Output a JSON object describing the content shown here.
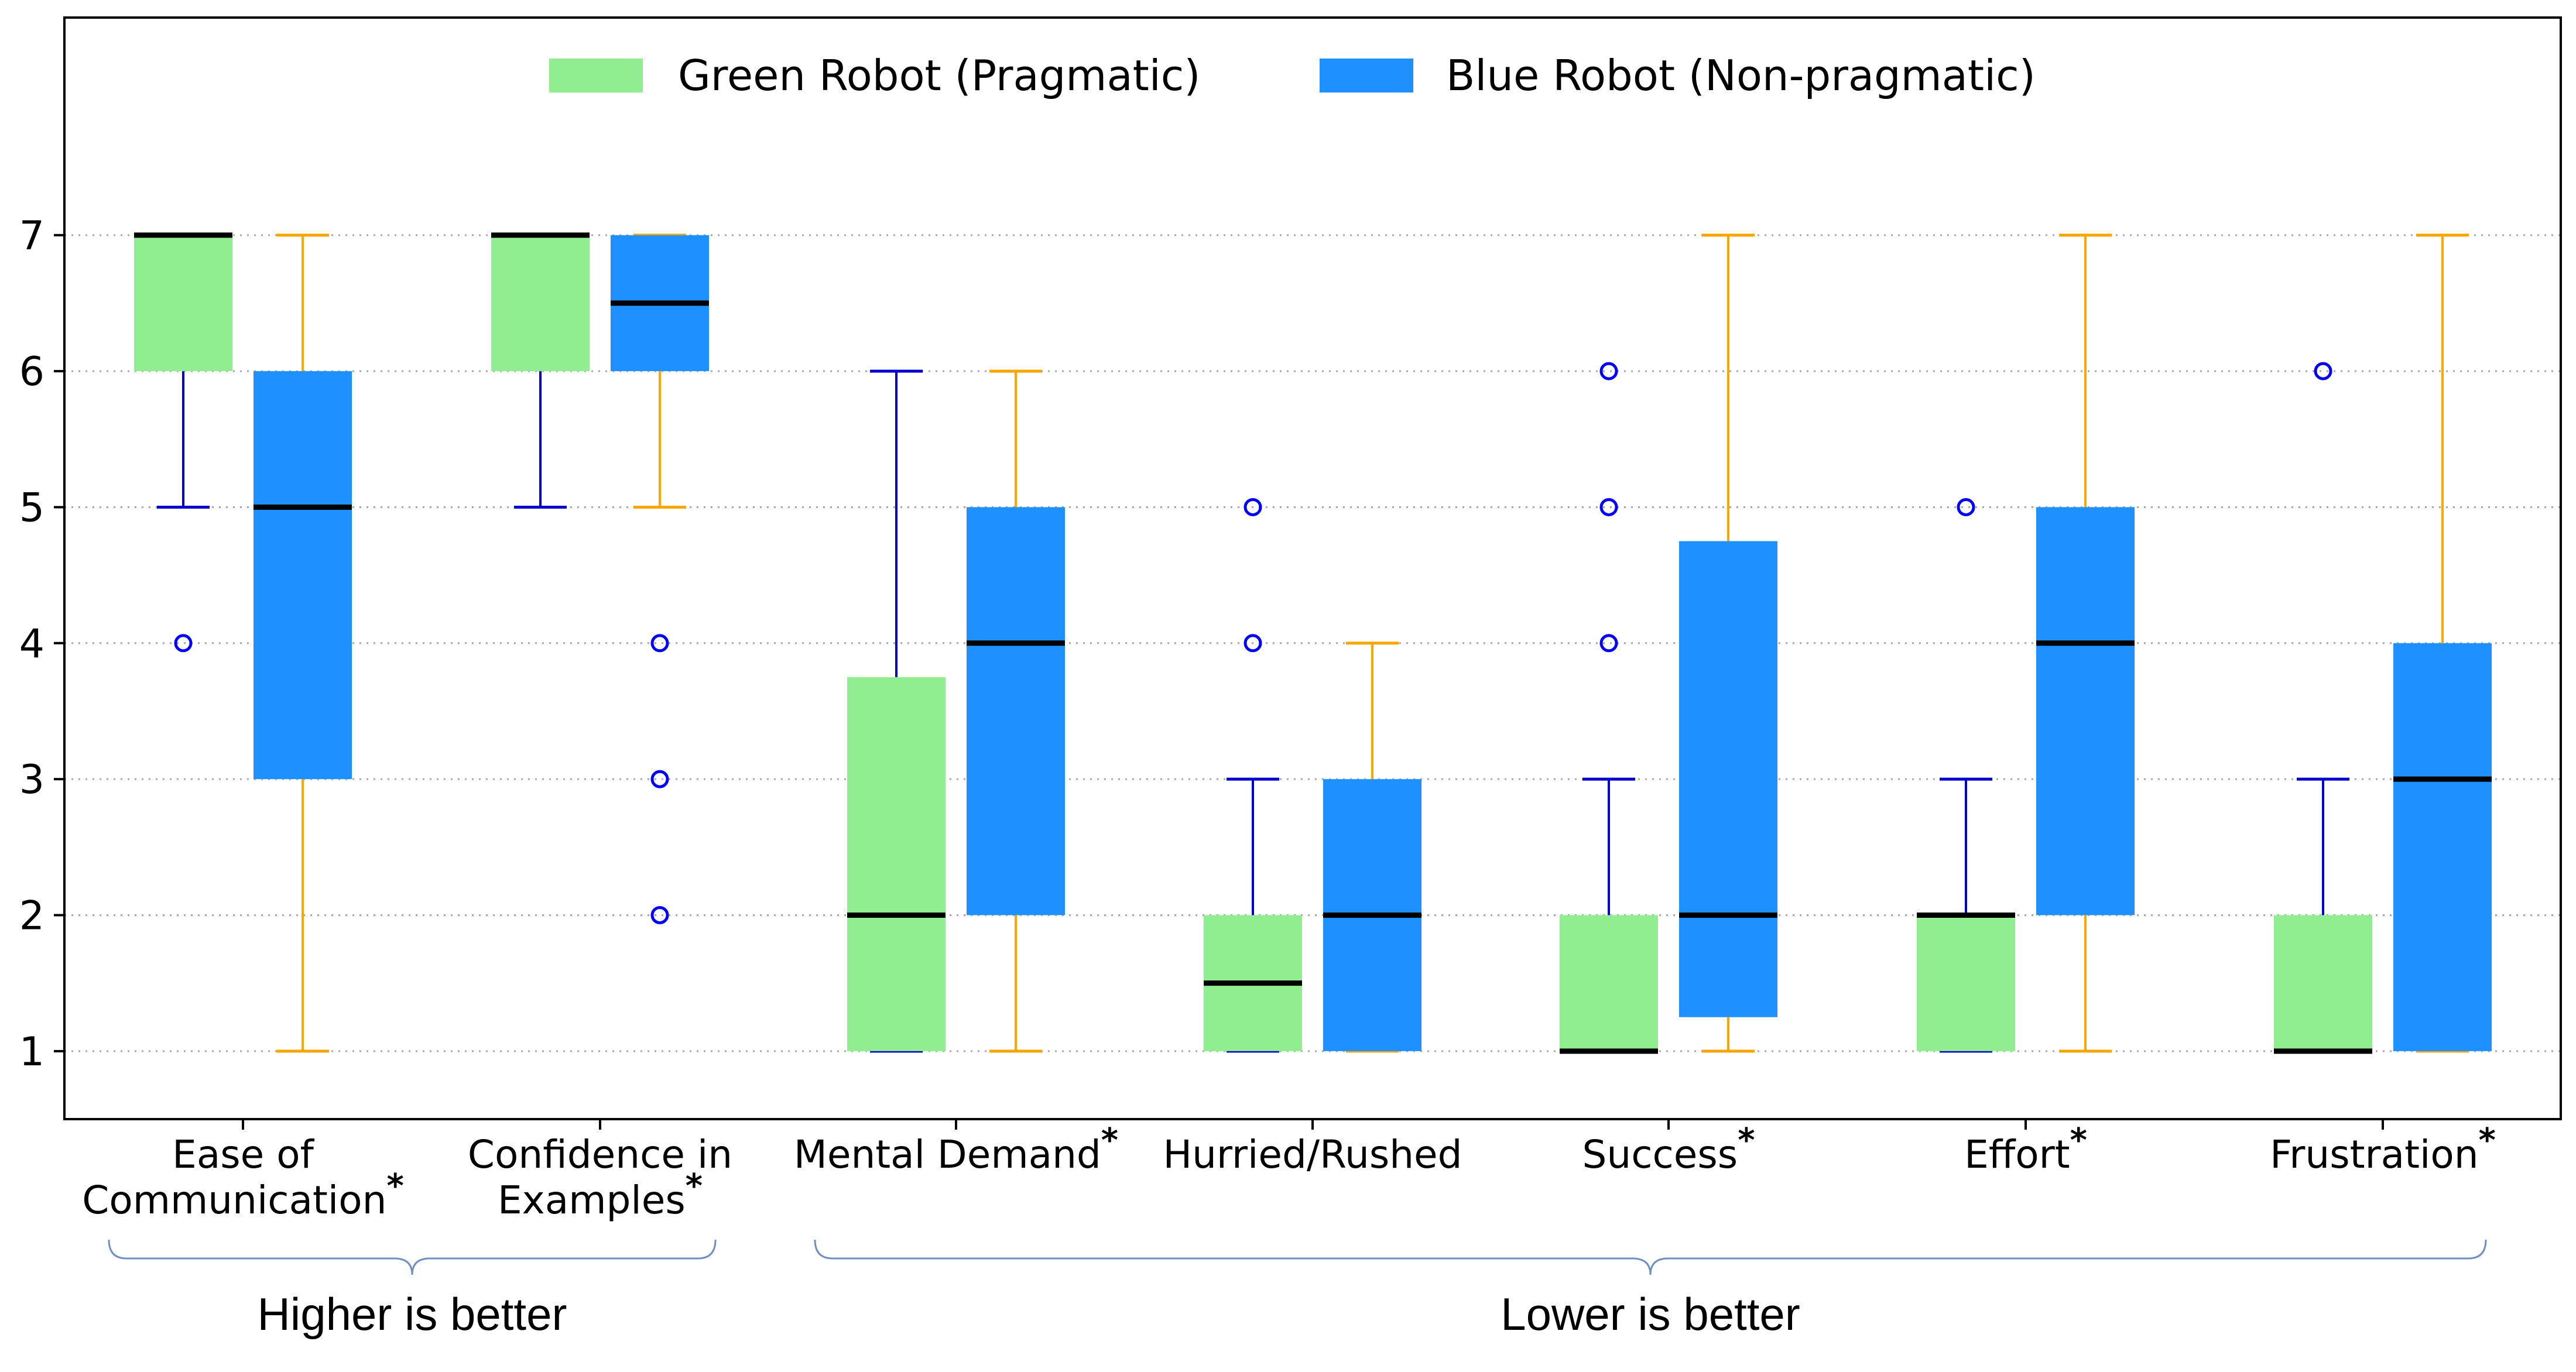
{
  "chart_data": {
    "type": "boxplot",
    "ylim": [
      0.5,
      8.6
    ],
    "yticks": [
      1,
      2,
      3,
      4,
      5,
      6,
      7
    ],
    "grid": "horizontal-dotted",
    "legend_placement": "top-center",
    "colors": {
      "green_box": "#90ee90",
      "blue_box": "#1e90ff",
      "green_whisker": "#0000cc",
      "blue_whisker": "#ffa500",
      "median": "#000000",
      "outlier": "#0000ff",
      "brace": "#6f8fc5"
    },
    "series": [
      {
        "name": "Green Robot (Pragmatic)",
        "color": "#90ee90"
      },
      {
        "name": "Blue Robot (Non-pragmatic)",
        "color": "#1e90ff"
      }
    ],
    "categories": [
      {
        "lines": [
          "Ease of",
          "Communication"
        ],
        "star": "*",
        "green": {
          "q1": 6,
          "median": 7,
          "q3": 7,
          "low": 5,
          "high": 7,
          "outliers": [
            4
          ]
        },
        "blue": {
          "q1": 3,
          "median": 5,
          "q3": 6,
          "low": 1,
          "high": 7,
          "outliers": []
        }
      },
      {
        "lines": [
          "Confidence in",
          "Examples"
        ],
        "star": "*",
        "green": {
          "q1": 6,
          "median": 7,
          "q3": 7,
          "low": 5,
          "high": 7,
          "outliers": []
        },
        "blue": {
          "q1": 6,
          "median": 6.5,
          "q3": 7,
          "low": 5,
          "high": 7,
          "outliers": [
            4,
            3,
            2
          ]
        }
      },
      {
        "lines": [
          "Mental Demand"
        ],
        "star": "*",
        "green": {
          "q1": 1,
          "median": 2,
          "q3": 3.75,
          "low": 1,
          "high": 6,
          "outliers": []
        },
        "blue": {
          "q1": 2,
          "median": 4,
          "q3": 5,
          "low": 1,
          "high": 6,
          "outliers": []
        }
      },
      {
        "lines": [
          "Hurried/Rushed"
        ],
        "star": "",
        "green": {
          "q1": 1,
          "median": 1.5,
          "q3": 2,
          "low": 1,
          "high": 3,
          "outliers": [
            5,
            4
          ]
        },
        "blue": {
          "q1": 1,
          "median": 2,
          "q3": 3,
          "low": 1,
          "high": 4,
          "outliers": []
        }
      },
      {
        "lines": [
          "Success"
        ],
        "star": "*",
        "green": {
          "q1": 1,
          "median": 1,
          "q3": 2,
          "low": 1,
          "high": 3,
          "outliers": [
            6,
            5,
            4
          ]
        },
        "blue": {
          "q1": 1.25,
          "median": 2,
          "q3": 4.75,
          "low": 1,
          "high": 7,
          "outliers": []
        }
      },
      {
        "lines": [
          "Effort"
        ],
        "star": "*",
        "green": {
          "q1": 1,
          "median": 2,
          "q3": 2,
          "low": 1,
          "high": 3,
          "outliers": [
            5
          ]
        },
        "blue": {
          "q1": 2,
          "median": 4,
          "q3": 5,
          "low": 1,
          "high": 7,
          "outliers": []
        }
      },
      {
        "lines": [
          "Frustration"
        ],
        "star": "*",
        "green": {
          "q1": 1,
          "median": 1,
          "q3": 2,
          "low": 1,
          "high": 3,
          "outliers": [
            6
          ]
        },
        "blue": {
          "q1": 1,
          "median": 3,
          "q3": 4,
          "low": 1,
          "high": 7,
          "outliers": []
        }
      }
    ],
    "groups": [
      {
        "label": "Higher is better",
        "from": 0,
        "to": 1
      },
      {
        "label": "Lower is better",
        "from": 2,
        "to": 6
      }
    ]
  }
}
